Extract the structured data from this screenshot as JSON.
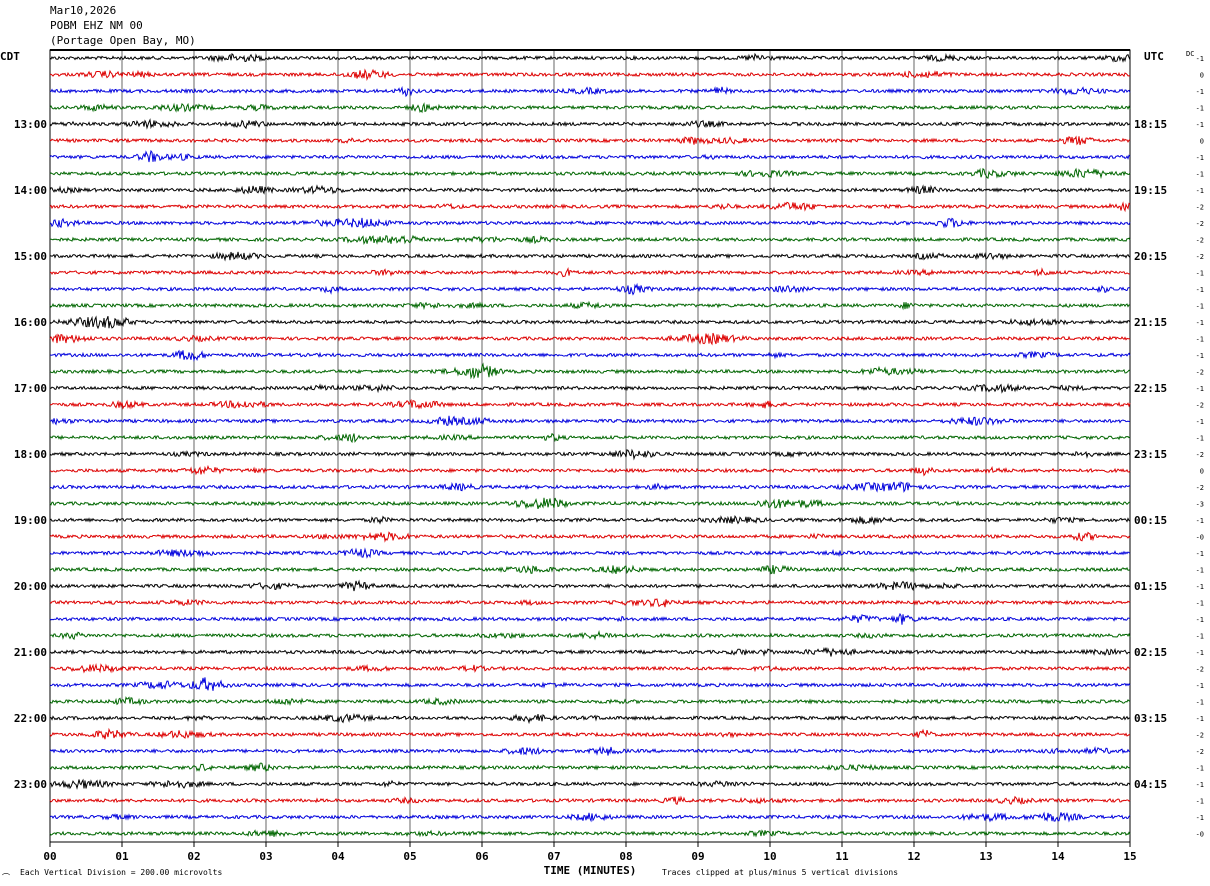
{
  "header": {
    "date": "Mar10,2026",
    "station": "POBM EHZ NM 00",
    "location": "(Portage Open Bay, MO)"
  },
  "chart_data": {
    "type": "line",
    "description_type": "helicorder",
    "left_timezone": "CDT",
    "right_timezone": "UTC",
    "dc_label": "DC",
    "xlabel": "TIME (MINUTES)",
    "x_ticks": [
      "00",
      "01",
      "02",
      "03",
      "04",
      "05",
      "06",
      "07",
      "08",
      "09",
      "10",
      "11",
      "12",
      "13",
      "14",
      "15"
    ],
    "xlim": [
      0,
      15
    ],
    "trace_colors": [
      "#000000",
      "#dd0000",
      "#0000dd",
      "#006600"
    ],
    "left_hour_labels": [
      "13:00",
      "14:00",
      "15:00",
      "16:00",
      "17:00",
      "18:00",
      "19:00",
      "20:00",
      "21:00",
      "22:00",
      "23:00"
    ],
    "right_hour_labels": [
      "18:15",
      "19:15",
      "20:15",
      "21:15",
      "22:15",
      "23:15",
      "00:15",
      "01:15",
      "02:15",
      "03:15",
      "04:15"
    ],
    "dc_offsets": [
      "-1",
      "0",
      "-1",
      "-1",
      "-1",
      "0",
      "-1",
      "-1",
      "-1",
      "-2",
      "-2",
      "-2",
      "-2",
      "-1",
      "-1",
      "-1",
      "-1",
      "-1",
      "-1",
      "-2",
      "-1",
      "-2",
      "-1",
      "-1",
      "-2",
      "0",
      "-2",
      "-3",
      "-1",
      "-0",
      "-1",
      "-1",
      "-1",
      "-1",
      "-1",
      "-1",
      "-1",
      "-2",
      "-1",
      "-1",
      "-1",
      "-2",
      "-2",
      "-1",
      "-1",
      "-1",
      "-1",
      "-0"
    ],
    "footer_left": "Each Vertical Division =  200.00 microvolts",
    "footer_right": "Traces clipped at plus/minus 5 vertical divisions",
    "corner_mark": "⌒"
  }
}
